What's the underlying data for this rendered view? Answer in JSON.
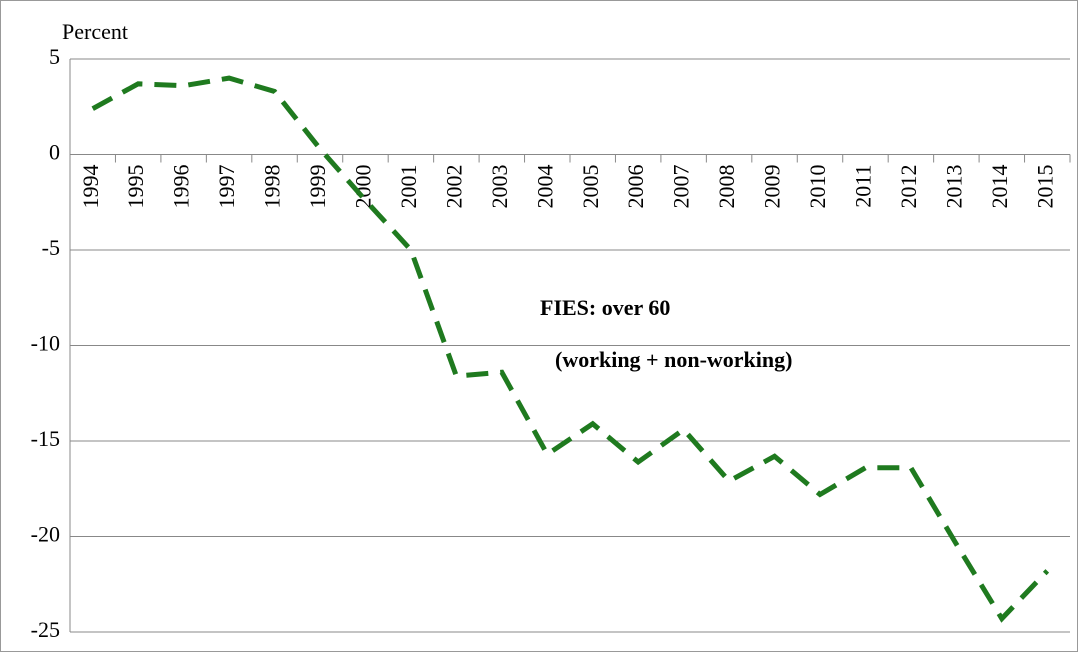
{
  "chart_data": {
    "type": "line",
    "y_label": "Percent",
    "categories": [
      "1994",
      "1995",
      "1996",
      "1997",
      "1998",
      "1999",
      "2000",
      "2001",
      "2002",
      "2003",
      "2004",
      "2005",
      "2006",
      "2007",
      "2008",
      "2009",
      "2010",
      "2011",
      "2012",
      "2013",
      "2014",
      "2015"
    ],
    "series": [
      {
        "name": "FIES: over 60 (working + non-working)",
        "color": "#1f7a1f",
        "values": [
          2.4,
          3.7,
          3.6,
          4.0,
          3.3,
          0.3,
          -2.4,
          -5.0,
          -11.6,
          -11.4,
          -15.7,
          -14.1,
          -16.1,
          -14.4,
          -17.1,
          -15.8,
          -17.8,
          -16.4,
          -16.4,
          -20.4,
          -24.3,
          -21.8
        ]
      }
    ],
    "annotations": [
      "FIES: over 60",
      "(working + non-working)"
    ],
    "ylim": [
      -25,
      5
    ],
    "yticks": [
      -25,
      -20,
      -15,
      -10,
      -5,
      0,
      5
    ],
    "grid": true
  }
}
